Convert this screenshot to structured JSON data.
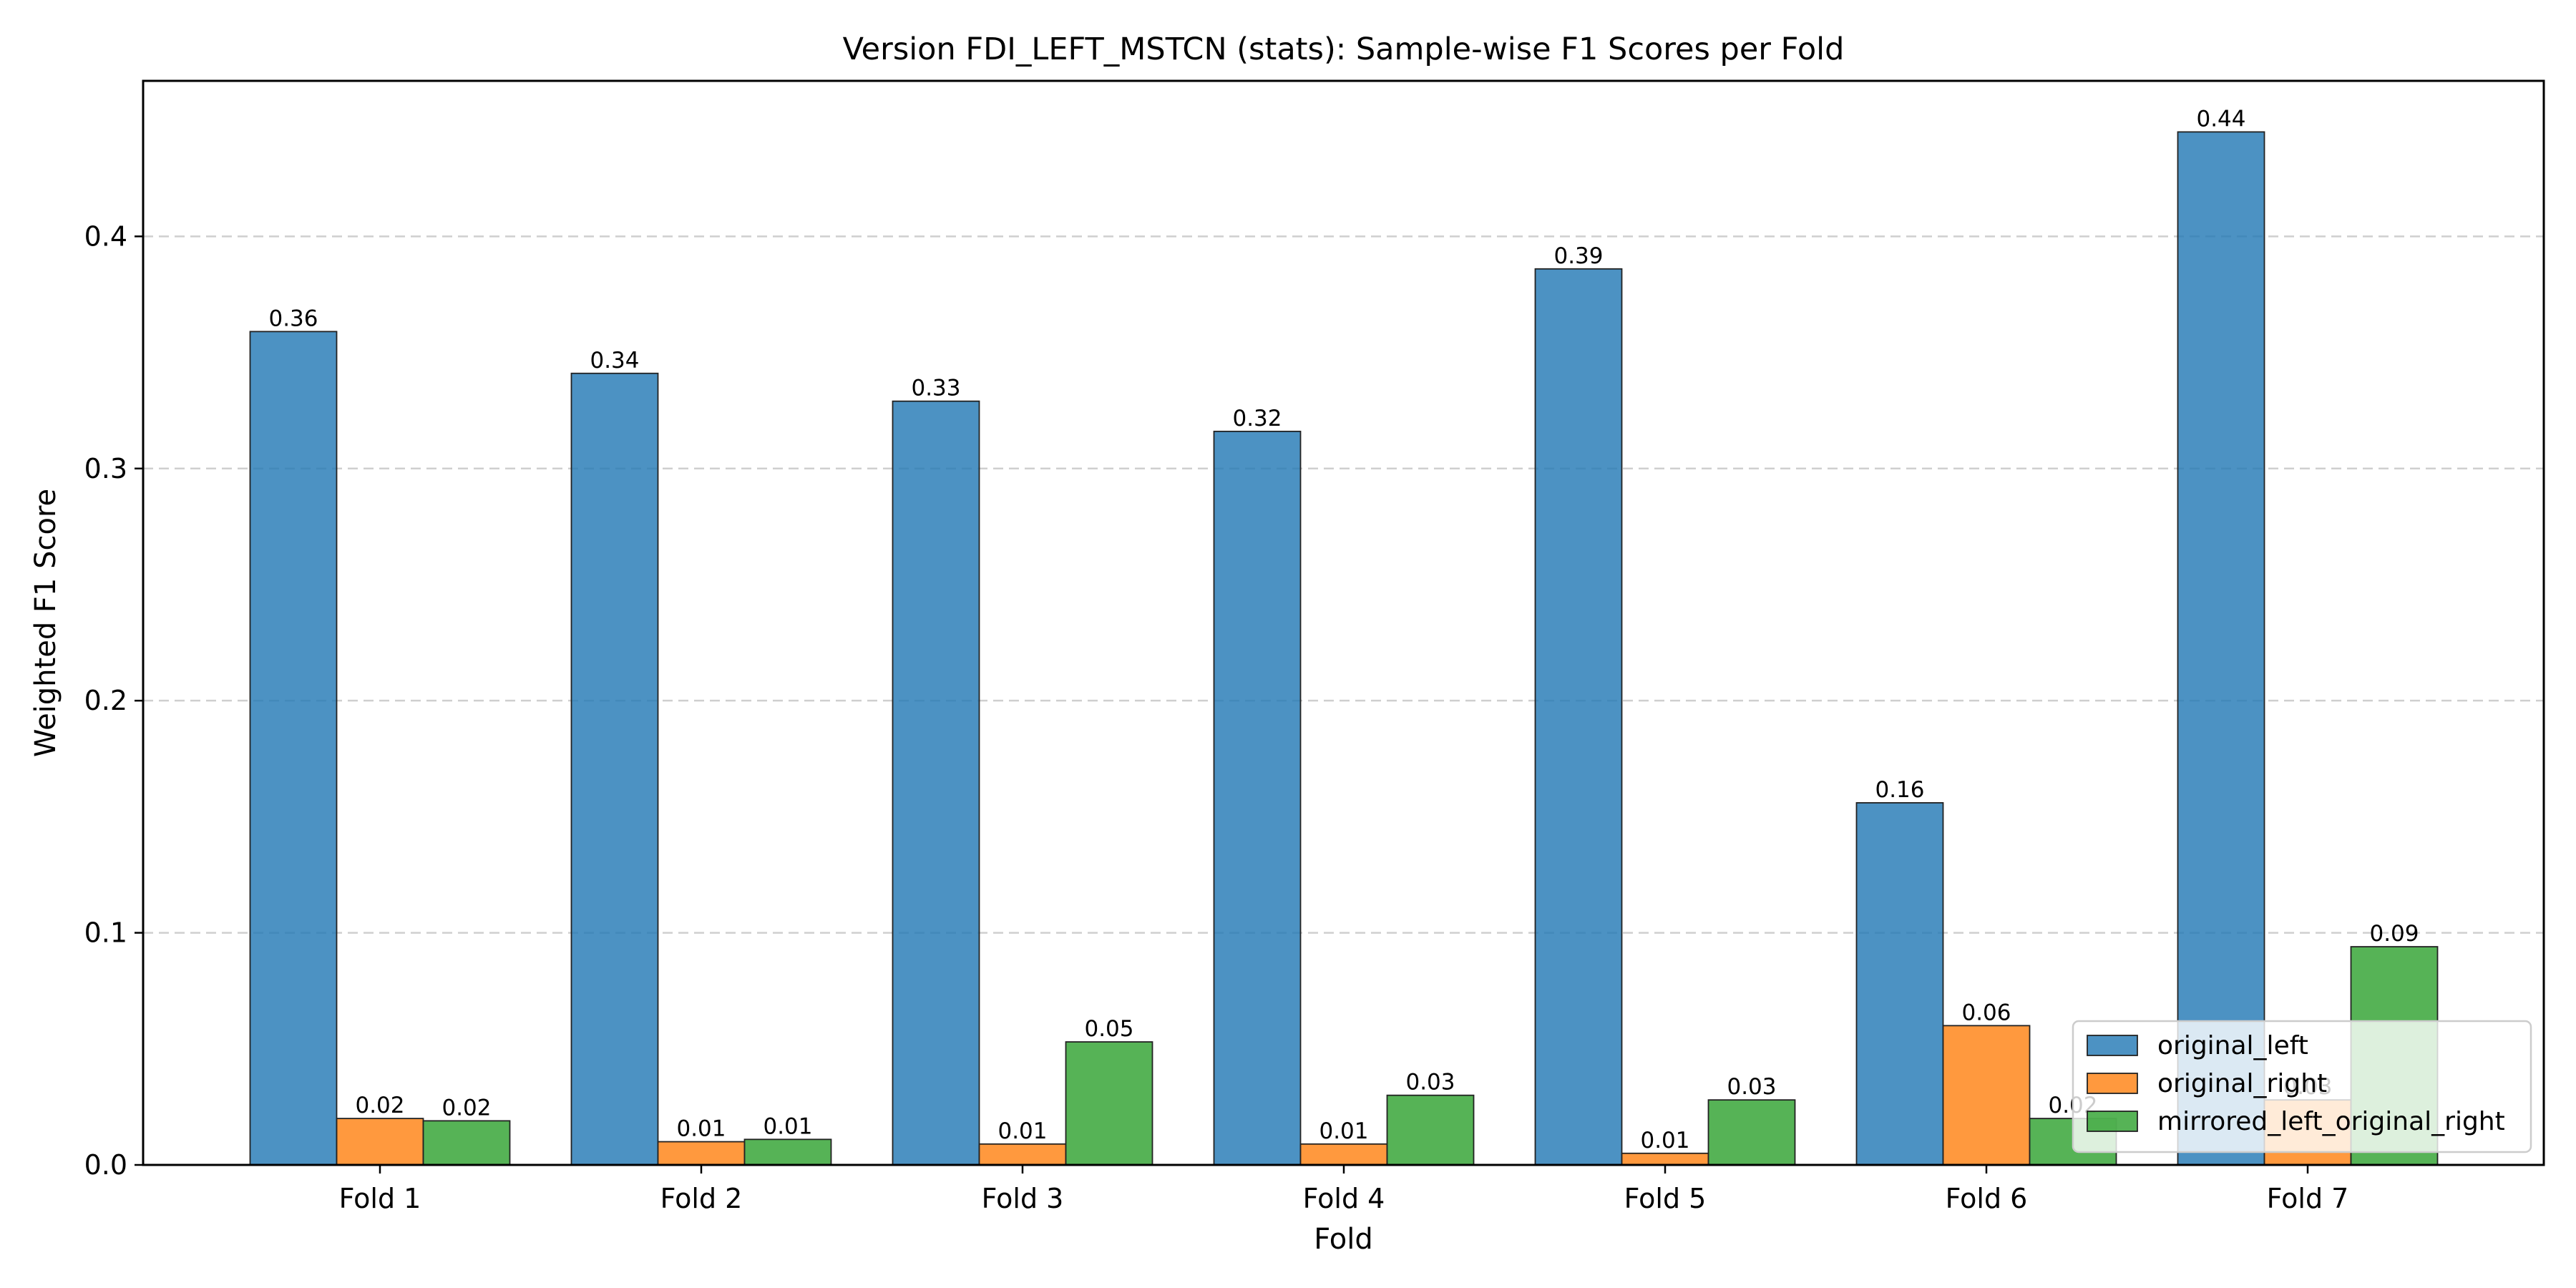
{
  "chart_data": {
    "type": "bar",
    "title": "Version FDI_LEFT_MSTCN (stats): Sample-wise F1 Scores per Fold",
    "xlabel": "Fold",
    "ylabel": "Weighted F1 Score",
    "categories": [
      "Fold 1",
      "Fold 2",
      "Fold 3",
      "Fold 4",
      "Fold 5",
      "Fold 6",
      "Fold 7"
    ],
    "ylim": [
      0,
      0.467
    ],
    "yticks": [
      0.0,
      0.1,
      0.2,
      0.3,
      0.4
    ],
    "ytick_labels": [
      "0.0",
      "0.1",
      "0.2",
      "0.3",
      "0.4"
    ],
    "grid": "y-dashed",
    "legend_position": "lower-right",
    "series": [
      {
        "name": "original_left",
        "color": "#1f77b4",
        "values": [
          0.359,
          0.341,
          0.329,
          0.316,
          0.386,
          0.156,
          0.445
        ],
        "labels": [
          "0.36",
          "0.34",
          "0.33",
          "0.32",
          "0.39",
          "0.16",
          "0.44"
        ]
      },
      {
        "name": "original_right",
        "color": "#ff7f0e",
        "values": [
          0.02,
          0.01,
          0.009,
          0.009,
          0.005,
          0.06,
          0.028
        ],
        "labels": [
          "0.02",
          "0.01",
          "0.01",
          "0.01",
          "0.01",
          "0.06",
          "0.03"
        ]
      },
      {
        "name": "mirrored_left_original_right",
        "color": "#2ca02c",
        "values": [
          0.019,
          0.011,
          0.053,
          0.03,
          0.028,
          0.02,
          0.094
        ],
        "labels": [
          "0.02",
          "0.01",
          "0.05",
          "0.03",
          "0.03",
          "0.02",
          "0.09"
        ]
      }
    ]
  }
}
